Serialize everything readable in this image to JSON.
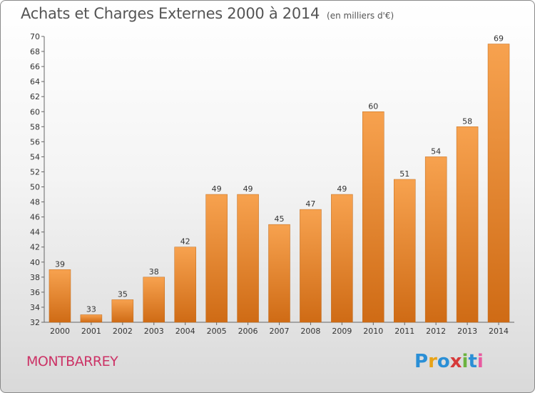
{
  "header": {
    "title": "Achats et Charges Externes 2000 à 2014",
    "subtitle": "(en milliers d'€)"
  },
  "footer": {
    "town": "MONTBARREY",
    "logo_letters": [
      "P",
      "r",
      "o",
      "x",
      "i",
      "t",
      "i"
    ]
  },
  "colors": {
    "bar_top": "#f7a24f",
    "bar_bottom": "#cf6b15",
    "logo": [
      "#2a8fd6",
      "#e8a317",
      "#2a8fd6",
      "#d63a3a",
      "#6cb33f",
      "#2a8fd6",
      "#e85aa0"
    ]
  },
  "chart_data": {
    "type": "bar",
    "title": "Achats et Charges Externes 2000 à 2014",
    "subtitle": "(en milliers d'€)",
    "categories": [
      "2000",
      "2001",
      "2002",
      "2003",
      "2004",
      "2005",
      "2006",
      "2007",
      "2008",
      "2009",
      "2010",
      "2011",
      "2012",
      "2013",
      "2014"
    ],
    "values": [
      39,
      33,
      35,
      38,
      42,
      49,
      49,
      45,
      47,
      49,
      60,
      51,
      54,
      58,
      69
    ],
    "ylim": [
      32,
      70
    ],
    "yticks": [
      32,
      34,
      36,
      38,
      40,
      42,
      44,
      46,
      48,
      50,
      52,
      54,
      56,
      58,
      60,
      62,
      64,
      66,
      68,
      70
    ],
    "grid": false,
    "data_labels": true
  }
}
